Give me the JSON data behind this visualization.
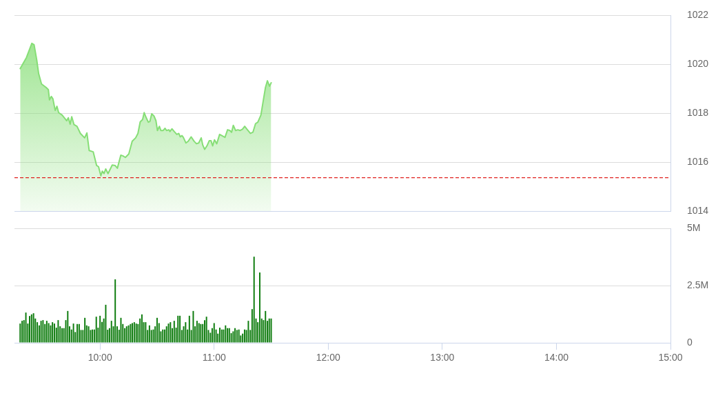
{
  "chart_data": [
    {
      "type": "area",
      "color": "#86de76",
      "xlim": [
        9.25,
        15
      ],
      "ylim": [
        1014,
        1022
      ],
      "yticks": [
        1014,
        1016,
        1018,
        1020,
        1022
      ],
      "grid": "y",
      "tick_labels": "y",
      "ref_lines": [
        {
          "axis": "y",
          "value": 1015.36,
          "color": "#e0201e",
          "line_style": "dashed"
        }
      ],
      "x": [
        9.3,
        9.355,
        9.402,
        9.422,
        9.445,
        9.462,
        9.487,
        9.527,
        9.547,
        9.557,
        9.573,
        9.587,
        9.607,
        9.622,
        9.637,
        9.668,
        9.708,
        9.722,
        9.738,
        9.752,
        9.772,
        9.798,
        9.828,
        9.865,
        9.885,
        9.905,
        9.94,
        9.97,
        9.987,
        10.007,
        10.02,
        10.035,
        10.05,
        10.07,
        10.107,
        10.132,
        10.152,
        10.182,
        10.202,
        10.222,
        10.252,
        10.282,
        10.312,
        10.332,
        10.352,
        10.373,
        10.387,
        10.403,
        10.423,
        10.437,
        10.453,
        10.473,
        10.49,
        10.503,
        10.52,
        10.533,
        10.553,
        10.57,
        10.583,
        10.603,
        10.613,
        10.63,
        10.65,
        10.673,
        10.69,
        10.703,
        10.718,
        10.73,
        10.753,
        10.773,
        10.798,
        10.825,
        10.845,
        10.865,
        10.887,
        10.9,
        10.917,
        10.937,
        10.957,
        10.973,
        10.987,
        11.003,
        11.023,
        11.048,
        11.068,
        11.095,
        11.118,
        11.138,
        11.153,
        11.168,
        11.188,
        11.208,
        11.228,
        11.248,
        11.268,
        11.288,
        11.318,
        11.34,
        11.363,
        11.383,
        11.41,
        11.43,
        11.45,
        11.467,
        11.485,
        11.5
      ],
      "values": [
        1019.82,
        1020.27,
        1020.85,
        1020.79,
        1020.18,
        1019.61,
        1019.19,
        1019.05,
        1018.96,
        1018.54,
        1018.68,
        1018.58,
        1018.11,
        1018.28,
        1018.02,
        1017.92,
        1017.69,
        1017.81,
        1017.55,
        1017.85,
        1017.53,
        1017.46,
        1017.17,
        1016.99,
        1017.19,
        1016.47,
        1016.42,
        1015.86,
        1015.81,
        1015.44,
        1015.63,
        1015.53,
        1015.72,
        1015.53,
        1015.88,
        1015.86,
        1015.75,
        1016.28,
        1016.25,
        1016.19,
        1016.33,
        1016.85,
        1016.99,
        1017.17,
        1017.64,
        1017.74,
        1018.02,
        1017.83,
        1017.63,
        1017.66,
        1017.97,
        1017.88,
        1017.69,
        1017.29,
        1017.46,
        1017.29,
        1017.29,
        1017.38,
        1017.29,
        1017.32,
        1017.25,
        1017.36,
        1017.25,
        1017.13,
        1017.17,
        1017.03,
        1017.08,
        1017.01,
        1016.78,
        1016.85,
        1017.03,
        1016.85,
        1016.75,
        1016.78,
        1016.99,
        1016.7,
        1016.52,
        1016.66,
        1016.87,
        1016.87,
        1016.66,
        1016.91,
        1016.75,
        1017.13,
        1017.08,
        1017.01,
        1017.32,
        1017.29,
        1017.22,
        1017.5,
        1017.29,
        1017.32,
        1017.29,
        1017.34,
        1017.46,
        1017.34,
        1017.17,
        1017.22,
        1017.57,
        1017.63,
        1017.92,
        1018.49,
        1019.05,
        1019.32,
        1019.1,
        1019.24
      ]
    },
    {
      "type": "bar",
      "color": "#0e7c0e",
      "xlim": [
        9.25,
        15
      ],
      "xticks": [
        {
          "value": 10,
          "label": "10:00"
        },
        {
          "value": 11,
          "label": "11:00"
        },
        {
          "value": 12,
          "label": "12:00"
        },
        {
          "value": 13,
          "label": "13:00"
        },
        {
          "value": 14,
          "label": "14:00"
        },
        {
          "value": 15,
          "label": "15:00"
        }
      ],
      "ylim": [
        0,
        5000000
      ],
      "yticks": [
        0,
        {
          "value": 2500000,
          "label": "2.5M"
        },
        {
          "value": 5000000,
          "label": "5M"
        }
      ],
      "grid": "y",
      "x": [
        9.3,
        9.317,
        9.333,
        9.35,
        9.367,
        9.383,
        9.4,
        9.417,
        9.433,
        9.45,
        9.467,
        9.483,
        9.5,
        9.517,
        9.533,
        9.55,
        9.567,
        9.583,
        9.6,
        9.617,
        9.633,
        9.65,
        9.667,
        9.683,
        9.7,
        9.717,
        9.733,
        9.75,
        9.767,
        9.783,
        9.8,
        9.817,
        9.833,
        9.85,
        9.867,
        9.883,
        9.9,
        9.917,
        9.933,
        9.95,
        9.967,
        9.983,
        10,
        10.017,
        10.033,
        10.05,
        10.067,
        10.083,
        10.1,
        10.117,
        10.133,
        10.15,
        10.167,
        10.183,
        10.2,
        10.217,
        10.233,
        10.25,
        10.267,
        10.283,
        10.3,
        10.317,
        10.333,
        10.35,
        10.367,
        10.383,
        10.4,
        10.417,
        10.433,
        10.45,
        10.467,
        10.483,
        10.5,
        10.517,
        10.533,
        10.55,
        10.567,
        10.583,
        10.6,
        10.617,
        10.633,
        10.65,
        10.667,
        10.683,
        10.7,
        10.717,
        10.733,
        10.75,
        10.767,
        10.783,
        10.8,
        10.817,
        10.833,
        10.85,
        10.867,
        10.883,
        10.9,
        10.917,
        10.933,
        10.95,
        10.967,
        10.983,
        11,
        11.017,
        11.033,
        11.05,
        11.067,
        11.083,
        11.1,
        11.117,
        11.133,
        11.15,
        11.167,
        11.183,
        11.2,
        11.217,
        11.233,
        11.25,
        11.267,
        11.283,
        11.3,
        11.317,
        11.333,
        11.35,
        11.367,
        11.383,
        11.4,
        11.417,
        11.433,
        11.45,
        11.467,
        11.483,
        11.5
      ],
      "values": [
        840000,
        960000,
        990000,
        1320000,
        840000,
        1170000,
        1240000,
        1290000,
        1060000,
        900000,
        760000,
        960000,
        990000,
        820000,
        960000,
        860000,
        760000,
        900000,
        840000,
        660000,
        990000,
        720000,
        640000,
        640000,
        990000,
        1390000,
        720000,
        580000,
        840000,
        470000,
        820000,
        820000,
        560000,
        560000,
        1090000,
        760000,
        720000,
        560000,
        580000,
        580000,
        1140000,
        660000,
        1180000,
        910000,
        1060000,
        1660000,
        570000,
        640000,
        960000,
        720000,
        2770000,
        720000,
        570000,
        1090000,
        820000,
        640000,
        720000,
        760000,
        820000,
        860000,
        900000,
        840000,
        820000,
        1060000,
        1240000,
        900000,
        900000,
        560000,
        760000,
        560000,
        580000,
        720000,
        1090000,
        860000,
        500000,
        580000,
        580000,
        720000,
        840000,
        900000,
        640000,
        960000,
        660000,
        1180000,
        1180000,
        560000,
        720000,
        900000,
        580000,
        1180000,
        560000,
        1390000,
        720000,
        960000,
        860000,
        820000,
        820000,
        990000,
        1140000,
        560000,
        440000,
        640000,
        860000,
        580000,
        400000,
        660000,
        580000,
        580000,
        760000,
        640000,
        640000,
        420000,
        500000,
        640000,
        560000,
        580000,
        320000,
        400000,
        580000,
        560000,
        960000,
        560000,
        1470000,
        3760000,
        1060000,
        900000,
        3070000,
        1060000,
        990000,
        1390000,
        960000,
        1060000,
        1060000
      ]
    }
  ]
}
